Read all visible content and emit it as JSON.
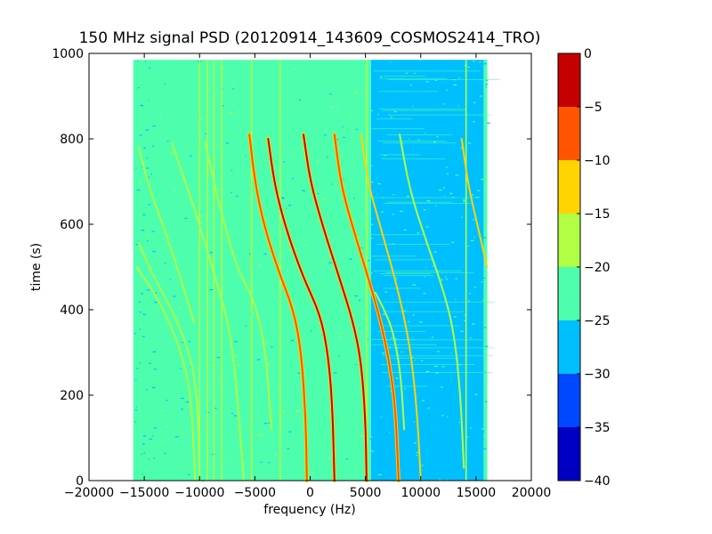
{
  "chart_data": {
    "type": "heatmap",
    "title": "150 MHz signal PSD (20120914_143609_COSMOS2414_TRO)",
    "xlabel": "frequency (Hz)",
    "ylabel": "time (s)",
    "xlim": [
      -20000,
      20000
    ],
    "ylim": [
      0,
      1000
    ],
    "x_ticks": [
      -20000,
      -15000,
      -10000,
      -5000,
      0,
      5000,
      10000,
      15000,
      20000
    ],
    "x_tick_labels": [
      "−20000",
      "−15000",
      "−10000",
      "−5000",
      "0",
      "5000",
      "10000",
      "15000",
      "20000"
    ],
    "y_ticks": [
      0,
      200,
      400,
      600,
      800,
      1000
    ],
    "y_tick_labels": [
      "0",
      "200",
      "400",
      "600",
      "800",
      "1000"
    ],
    "data_extent": {
      "x": [
        -16000,
        16000
      ],
      "y": [
        0,
        985
      ]
    },
    "background_level": {
      "frequency_below_5500": -22.5,
      "frequency_above_5500": -27.5
    },
    "vertical_lines": [
      {
        "frequency": -10000,
        "level": -17
      },
      {
        "frequency": -9300,
        "level": -17
      },
      {
        "frequency": -8700,
        "level": -17
      },
      {
        "frequency": -8000,
        "level": -19
      },
      {
        "frequency": -5300,
        "level": -18
      },
      {
        "frequency": -2700,
        "level": -18
      },
      {
        "frequency": 5100,
        "level": -18
      },
      {
        "frequency": 14100,
        "level": -18
      }
    ],
    "traces": [
      {
        "points": [
          [
            -15500,
            555
          ],
          [
            -14000,
            470
          ],
          [
            -12500,
            400
          ],
          [
            -11200,
            320
          ],
          [
            -10500,
            250
          ],
          [
            -10100,
            150
          ],
          [
            -10000,
            0
          ]
        ],
        "level": -17
      },
      {
        "points": [
          [
            -15700,
            500
          ],
          [
            -14200,
            445
          ],
          [
            -12500,
            360
          ],
          [
            -11200,
            260
          ],
          [
            -10700,
            170
          ],
          [
            -10400,
            0
          ]
        ],
        "level": -17
      },
      {
        "points": [
          [
            -15500,
            780
          ],
          [
            -14500,
            680
          ],
          [
            -12500,
            540
          ],
          [
            -10500,
            370
          ]
        ],
        "level": -19
      },
      {
        "points": [
          [
            -12500,
            790
          ],
          [
            -10500,
            640
          ],
          [
            -8500,
            470
          ],
          [
            -7000,
            330
          ],
          [
            -6000,
            0
          ]
        ],
        "level": -19
      },
      {
        "points": [
          [
            -9500,
            790
          ],
          [
            -8000,
            620
          ],
          [
            -6500,
            490
          ],
          [
            -5000,
            420
          ],
          [
            -4000,
            300
          ],
          [
            -3500,
            120
          ]
        ],
        "level": -19
      },
      {
        "points": [
          [
            -5500,
            810
          ],
          [
            -5000,
            700
          ],
          [
            -4200,
            600
          ],
          [
            -3000,
            500
          ],
          [
            -1500,
            400
          ],
          [
            -800,
            300
          ],
          [
            -400,
            150
          ],
          [
            -300,
            0
          ]
        ],
        "level": -10
      },
      {
        "points": [
          [
            -3800,
            800
          ],
          [
            -3200,
            690
          ],
          [
            -2200,
            590
          ],
          [
            -700,
            480
          ],
          [
            900,
            390
          ],
          [
            1600,
            300
          ],
          [
            2000,
            180
          ],
          [
            2200,
            0
          ]
        ],
        "level": -5
      },
      {
        "points": [
          [
            -600,
            810
          ],
          [
            0,
            700
          ],
          [
            1200,
            590
          ],
          [
            2700,
            470
          ],
          [
            3900,
            370
          ],
          [
            4600,
            280
          ],
          [
            5000,
            150
          ],
          [
            5100,
            0
          ]
        ],
        "level": -2
      },
      {
        "points": [
          [
            2200,
            810
          ],
          [
            2800,
            690
          ],
          [
            4000,
            580
          ],
          [
            5300,
            470
          ],
          [
            6200,
            390
          ],
          [
            7000,
            300
          ],
          [
            7700,
            180
          ],
          [
            8000,
            0
          ]
        ],
        "level": -8
      },
      {
        "points": [
          [
            4600,
            810
          ],
          [
            5200,
            700
          ],
          [
            6400,
            590
          ],
          [
            7700,
            470
          ],
          [
            8600,
            370
          ],
          [
            9200,
            280
          ],
          [
            9700,
            150
          ],
          [
            10000,
            0
          ]
        ],
        "level": -13
      },
      {
        "points": [
          [
            8100,
            810
          ],
          [
            9000,
            680
          ],
          [
            10500,
            560
          ],
          [
            12000,
            450
          ],
          [
            13000,
            350
          ],
          [
            13600,
            200
          ],
          [
            13900,
            30
          ]
        ],
        "level": -16
      },
      {
        "points": [
          [
            13700,
            800
          ],
          [
            14300,
            690
          ],
          [
            15200,
            590
          ],
          [
            16000,
            500
          ]
        ],
        "level": -15
      },
      {
        "points": [
          [
            5900,
            440
          ],
          [
            6700,
            400
          ],
          [
            7500,
            350
          ],
          [
            8200,
            250
          ],
          [
            8500,
            120
          ]
        ],
        "level": -18
      }
    ],
    "colorbar": {
      "min": -40,
      "max": 0,
      "ticks": [
        0,
        -5,
        -10,
        -15,
        -20,
        -25,
        -30,
        -35,
        -40
      ],
      "tick_labels": [
        "0",
        "−5",
        "−10",
        "−15",
        "−20",
        "−25",
        "−30",
        "−35",
        "−40"
      ],
      "bands": [
        {
          "from": -40,
          "to": -35,
          "color": "#0000c4"
        },
        {
          "from": -35,
          "to": -30,
          "color": "#0048ff"
        },
        {
          "from": -30,
          "to": -25,
          "color": "#00bfff"
        },
        {
          "from": -25,
          "to": -20,
          "color": "#4dffad"
        },
        {
          "from": -20,
          "to": -15,
          "color": "#b0ff45"
        },
        {
          "from": -15,
          "to": -10,
          "color": "#ffd400"
        },
        {
          "from": -10,
          "to": -5,
          "color": "#ff5500"
        },
        {
          "from": -5,
          "to": 0,
          "color": "#c40000"
        }
      ]
    }
  }
}
